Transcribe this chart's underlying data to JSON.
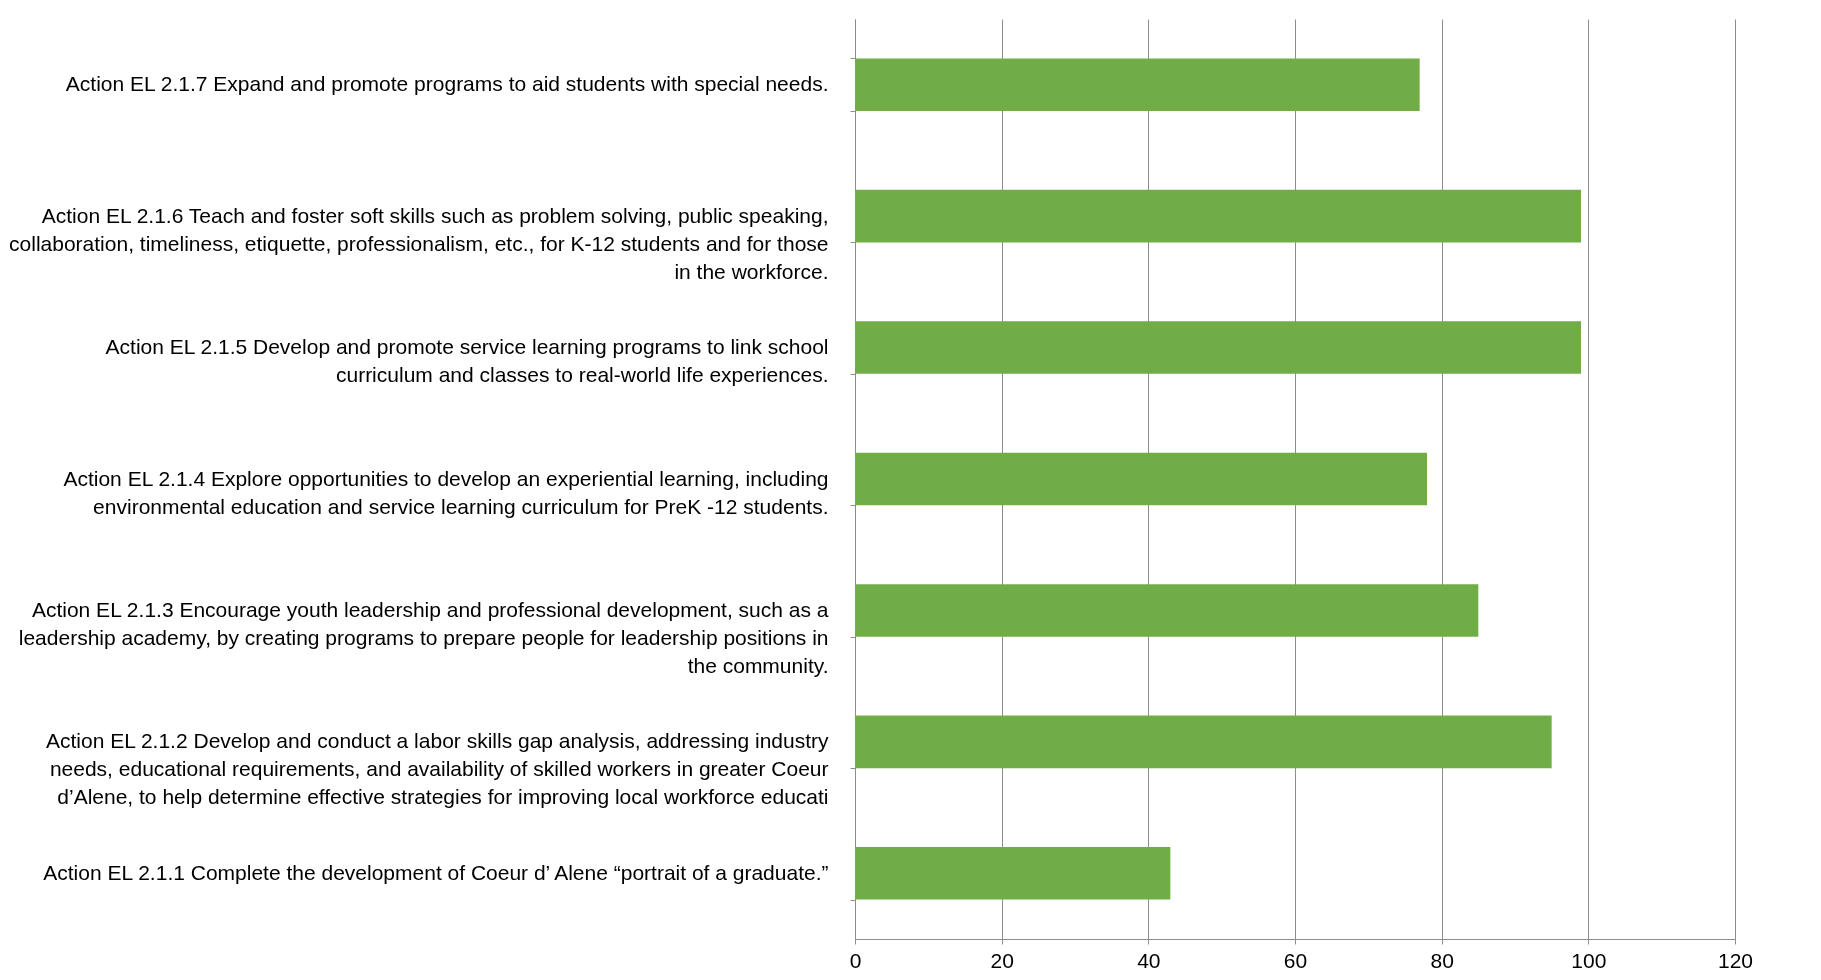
{
  "chart_data": {
    "type": "bar",
    "orientation": "horizontal",
    "categories": [
      "Action EL 2.1.7 Expand and promote programs to aid students with special needs.",
      "Action EL 2.1.6 Teach and foster soft skills such as problem solving, public speaking, collaboration, timeliness, etiquette, professionalism, etc., for K-12 students and for those in the workforce.",
      "Action EL 2.1.5 Develop and promote service learning programs to link school curriculum and classes to real-world life experiences.",
      "Action EL 2.1.4 Explore opportunities to develop an experiential learning, including environmental education and service learning curriculum for PreK -12 students.",
      "Action EL 2.1.3 Encourage youth leadership and professional development, such as a leadership academy, by creating programs to prepare people for leadership positions in the community.",
      "Action EL 2.1.2 Develop and conduct a labor skills gap analysis, addressing industry needs, educational requirements, and availability of skilled workers in greater Coeur d’Alene, to help determine effective strategies for improving local workforce educati",
      "Action EL 2.1.1 Complete the development of Coeur d’ Alene “portrait of a graduate.”"
    ],
    "values": [
      77,
      99,
      99,
      78,
      85,
      95,
      43
    ],
    "color": "#70ad47",
    "xlim": [
      0,
      120
    ],
    "xticks": [
      0,
      20,
      40,
      60,
      80,
      100,
      120
    ],
    "grid": "x"
  }
}
